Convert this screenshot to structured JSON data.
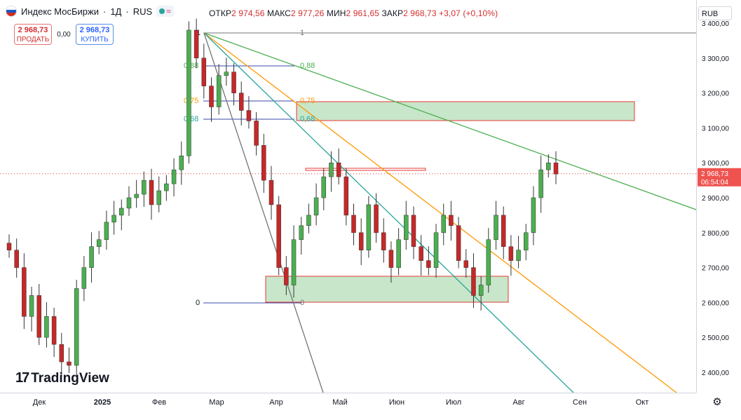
{
  "header": {
    "symbol": "Индекс МосБиржи",
    "interval": "1Д",
    "exchange": "RUS",
    "title_sep": "·",
    "ohlc": {
      "open_label": "ОТКР",
      "open": "2 974,56",
      "high_label": "МАКС",
      "high": "2 977,26",
      "low_label": "МИН",
      "low": "2 961,65",
      "close_label": "ЗАКР",
      "close": "2 968,73",
      "change": "+3,07 (+0,10%)"
    }
  },
  "trade": {
    "sell_price": "2 968,73",
    "sell_label": "ПРОДАТЬ",
    "spread": "0,00",
    "buy_price": "2 968,73",
    "buy_label": "КУПИТЬ"
  },
  "currency": "RUB",
  "price_axis": [
    "3 400,00",
    "3 300,00",
    "3 200,00",
    "3 100,00",
    "3 000,00",
    "2 900,00",
    "2 800,00",
    "2 700,00",
    "2 600,00",
    "2 500,00",
    "2 400,00"
  ],
  "price_badge": {
    "price": "2 968,73",
    "countdown": "06:54:04"
  },
  "time_axis": [
    "Дек",
    "2025",
    "Фев",
    "Мар",
    "Апр",
    "Май",
    "Июн",
    "Июл",
    "Авг",
    "Сен",
    "Окт"
  ],
  "fib_labels": {
    "level_1": "1",
    "level_088": "0,88",
    "level_075": "0,75",
    "level_068": "0,68",
    "level_0": "0"
  },
  "brand": "TradingView",
  "icons": {
    "flag": "russia-flag-icon",
    "settings": "gear-icon",
    "logo": "tradingview-logo-icon"
  },
  "colors": {
    "up": "#26a69a",
    "down": "#ef5350",
    "candle_up": "#4caf50",
    "candle_down": "#c62828",
    "fib_green": "#4caf50",
    "fib_orange": "#ff9800",
    "fib_teal": "#26a69a",
    "zone": "#c8e6c9"
  },
  "chart_data": {
    "type": "candlestick",
    "title": "Индекс МосБиржи · 1Д · RUS",
    "x_ticks": [
      "Дек",
      "2025",
      "Фев",
      "Мар",
      "Апр",
      "Май",
      "Июн",
      "Июл",
      "Авг",
      "Сен",
      "Окт"
    ],
    "y_range": [
      2360,
      3430
    ],
    "last_price": 2968.73,
    "close_path": [
      2750,
      2700,
      2560,
      2620,
      2500,
      2560,
      2480,
      2430,
      2420,
      2640,
      2700,
      2760,
      2780,
      2830,
      2850,
      2870,
      2900,
      2910,
      2950,
      2880,
      2920,
      2940,
      2980,
      3020,
      3380,
      3300,
      3220,
      3160,
      3250,
      3260,
      3200,
      3150,
      3120,
      3050,
      2950,
      2880,
      2700,
      2650,
      2780,
      2820,
      2850,
      2900,
      2960,
      3000,
      2960,
      2850,
      2800,
      2750,
      2880,
      2800,
      2750,
      2700,
      2780,
      2850,
      2760,
      2720,
      2700,
      2800,
      2850,
      2820,
      2720,
      2700,
      2620,
      2650,
      2780,
      2850,
      2760,
      2720,
      2750,
      2800,
      2900,
      2980,
      3000,
      2968
    ]
  }
}
